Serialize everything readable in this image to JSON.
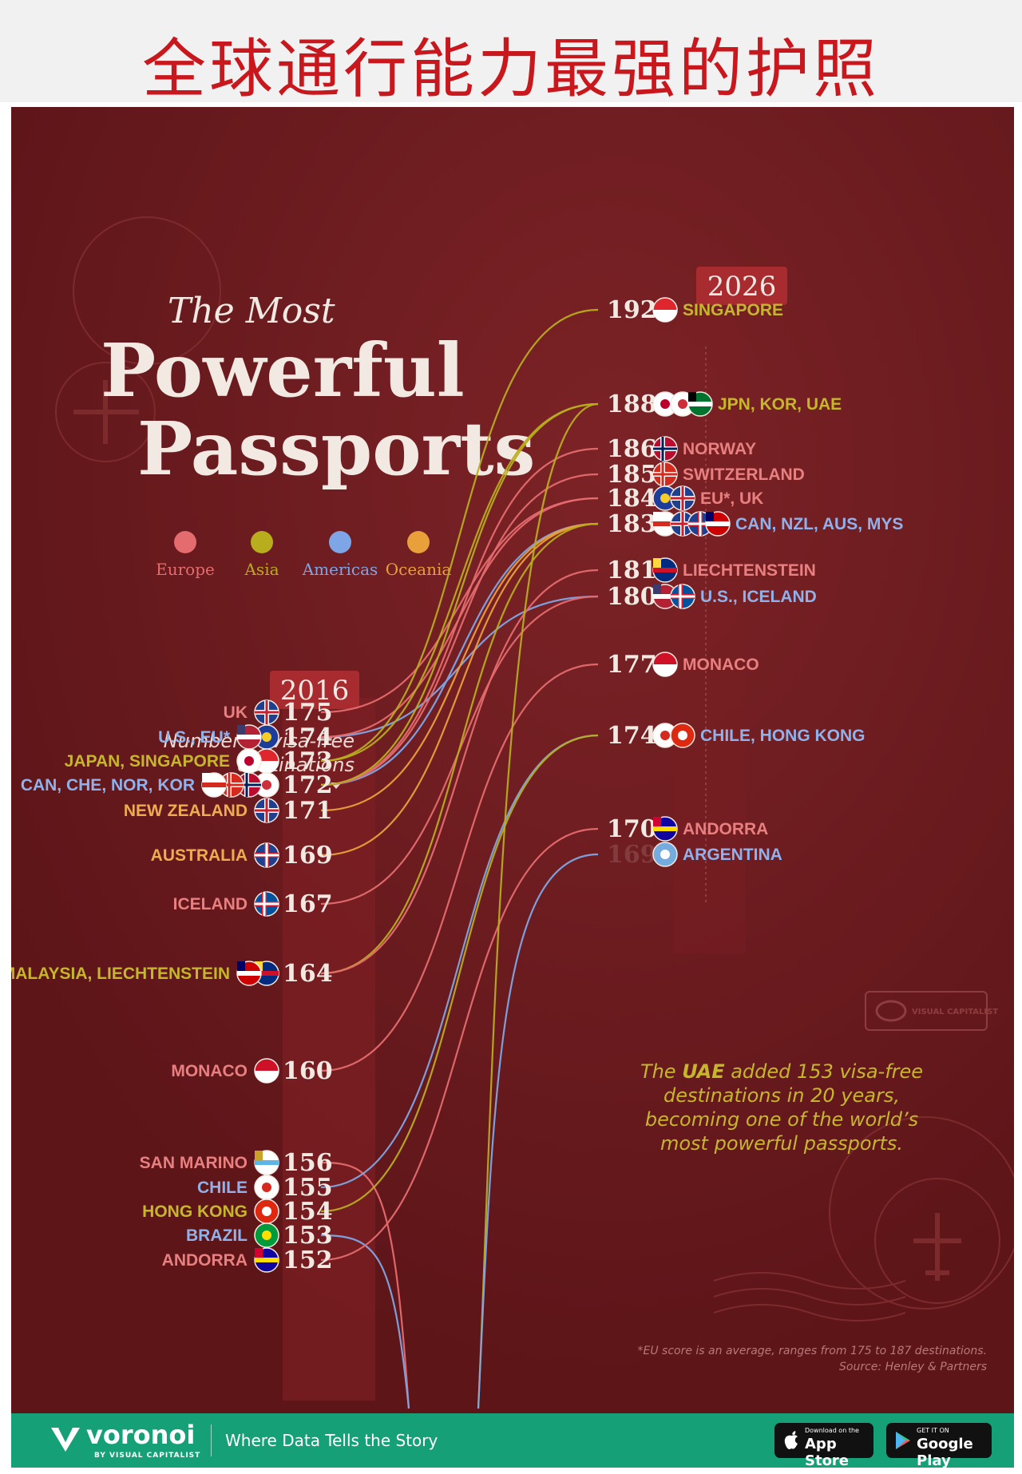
{
  "banner": {
    "title": "全球通行能力最强的护照"
  },
  "poster": {
    "title_line1": "The Most",
    "title_line2": "Powerful",
    "title_line3": "Passports",
    "year_left": "2016",
    "year_right": "2026",
    "axis_note_line1": "Number of visa-free",
    "axis_note_line2": "destinations",
    "legend": [
      {
        "label": "Europe",
        "color": "#e46c6f"
      },
      {
        "label": "Asia",
        "color": "#b8ad1d"
      },
      {
        "label": "Americas",
        "color": "#7ea6e6"
      },
      {
        "label": "Oceania",
        "color": "#e9a03b"
      }
    ],
    "annotation": {
      "line1_pre": "The ",
      "line1_bold": "UAE",
      "line1_post": " added 153 visa-free",
      "line2": "destinations in 20 years,",
      "line3": "becoming one of the world’s",
      "line4": "most powerful passports."
    },
    "footnote1": "*EU score is an average, ranges from 175 to 187 destinations.",
    "footnote2": "Source: Henley & Partners",
    "watermark": "VISUAL CAPITALIST"
  },
  "colors": {
    "background": "#6a1a1d",
    "europe": "#e46c6f",
    "asia": "#b8ad1d",
    "americas": "#7ea6e6",
    "oceania": "#e9a03b",
    "label_europe": "#e87f80",
    "label_asia": "#c6b62c",
    "label_americas": "#8fb2ec",
    "label_oceania": "#eeac52",
    "footer": "#16a077",
    "banner_text": "#c8171d"
  },
  "footer": {
    "logo": "voronoi",
    "logo_sub": "BY VISUAL CAPITALIST",
    "tagline": "Where Data Tells the Story",
    "app_store_small": "Download on the",
    "app_store": "App Store",
    "google_play_small": "GET IT ON",
    "google_play": "Google Play"
  },
  "chart_data": {
    "type": "slope",
    "title": "The Most Powerful Passports",
    "xlabel": "",
    "ylabel": "Number of visa-free destinations",
    "x": [
      "2016",
      "2026"
    ],
    "left_labels": [
      {
        "label": "UK",
        "value": 175,
        "region": "Europe",
        "flags": [
          "gb-flag"
        ]
      },
      {
        "label": "U.S., EU*",
        "value": 174,
        "region": "Americas",
        "flags": [
          "us-flag",
          "eu-flag"
        ]
      },
      {
        "label": "JAPAN, SINGAPORE",
        "value": 173,
        "region": "Asia",
        "flags": [
          "jp-flag",
          "sg-flag"
        ]
      },
      {
        "label": "CAN, CHE, NOR, KOR",
        "value": 172,
        "region": "Americas",
        "flags": [
          "ca-flag",
          "ch-flag",
          "no-flag",
          "kr-flag"
        ]
      },
      {
        "label": "NEW ZEALAND",
        "value": 171,
        "region": "Oceania",
        "flags": [
          "nz-flag"
        ]
      },
      {
        "label": "AUSTRALIA",
        "value": 169,
        "region": "Oceania",
        "flags": [
          "au-flag"
        ]
      },
      {
        "label": "ICELAND",
        "value": 167,
        "region": "Europe",
        "flags": [
          "is-flag"
        ]
      },
      {
        "label": "MALAYSIA, LIECHTENSTEIN",
        "value": 164,
        "region": "Asia",
        "flags": [
          "my-flag",
          "li-flag"
        ]
      },
      {
        "label": "MONACO",
        "value": 160,
        "region": "Europe",
        "flags": [
          "mc-flag"
        ]
      },
      {
        "label": "SAN MARINO",
        "value": 156,
        "region": "Europe",
        "flags": [
          "sm-flag"
        ]
      },
      {
        "label": "CHILE",
        "value": 155,
        "region": "Americas",
        "flags": [
          "cl-flag"
        ]
      },
      {
        "label": "HONG KONG",
        "value": 154,
        "region": "Asia",
        "flags": [
          "hk-flag"
        ]
      },
      {
        "label": "BRAZIL",
        "value": 153,
        "region": "Americas",
        "flags": [
          "br-flag"
        ]
      },
      {
        "label": "ANDORRA",
        "value": 152,
        "region": "Europe",
        "flags": [
          "ad-flag"
        ]
      }
    ],
    "right_labels": [
      {
        "label": "SINGAPORE",
        "value": 192,
        "region": "Asia",
        "flags": [
          "sg-flag"
        ]
      },
      {
        "label": "JPN, KOR, UAE",
        "value": 188,
        "region": "Asia",
        "flags": [
          "jp-flag",
          "kr-flag",
          "ae-flag"
        ]
      },
      {
        "label": "NORWAY",
        "value": 186,
        "region": "Europe",
        "flags": [
          "no-flag"
        ]
      },
      {
        "label": "SWITZERLAND",
        "value": 185,
        "region": "Europe",
        "flags": [
          "ch-flag"
        ]
      },
      {
        "label": "EU*, UK",
        "value": 184,
        "region": "Europe",
        "flags": [
          "eu-flag",
          "gb-flag"
        ]
      },
      {
        "label": "CAN, NZL, AUS, MYS",
        "value": 183,
        "region": "Americas",
        "flags": [
          "ca-flag",
          "nz-flag",
          "au-flag",
          "my-flag"
        ]
      },
      {
        "label": "LIECHTENSTEIN",
        "value": 181,
        "region": "Europe",
        "flags": [
          "li-flag"
        ]
      },
      {
        "label": "U.S., ICELAND",
        "value": 180,
        "region": "Americas",
        "flags": [
          "us-flag",
          "is-flag"
        ]
      },
      {
        "label": "MONACO",
        "value": 177,
        "region": "Europe",
        "flags": [
          "mc-flag"
        ]
      },
      {
        "label": "CHILE, HONG KONG",
        "value": 174,
        "region": "Americas",
        "flags": [
          "cl-flag",
          "hk-flag"
        ]
      },
      {
        "label": "ANDORRA",
        "value": 170,
        "region": "Europe",
        "flags": [
          "ad-flag"
        ]
      },
      {
        "label": "ARGENTINA",
        "value": 169,
        "value_visible": false,
        "region": "Americas",
        "flags": [
          "ar-flag"
        ]
      }
    ],
    "series": [
      {
        "name": "UK",
        "region": "Europe",
        "values": [
          175,
          184
        ]
      },
      {
        "name": "U.S.",
        "region": "Americas",
        "values": [
          174,
          180
        ]
      },
      {
        "name": "EU*",
        "region": "Europe",
        "values": [
          174,
          184
        ]
      },
      {
        "name": "JAPAN",
        "region": "Asia",
        "values": [
          173,
          188
        ]
      },
      {
        "name": "SINGAPORE",
        "region": "Asia",
        "values": [
          173,
          192
        ]
      },
      {
        "name": "CAN",
        "region": "Americas",
        "values": [
          172,
          183
        ]
      },
      {
        "name": "CHE",
        "region": "Europe",
        "values": [
          172,
          185
        ]
      },
      {
        "name": "NOR",
        "region": "Europe",
        "values": [
          172,
          186
        ]
      },
      {
        "name": "KOR",
        "region": "Asia",
        "values": [
          172,
          188
        ]
      },
      {
        "name": "NEW ZEALAND",
        "region": "Oceania",
        "values": [
          171,
          183
        ]
      },
      {
        "name": "AUSTRALIA",
        "region": "Oceania",
        "values": [
          169,
          183
        ]
      },
      {
        "name": "ICELAND",
        "region": "Europe",
        "values": [
          167,
          180
        ]
      },
      {
        "name": "MALAYSIA",
        "region": "Asia",
        "values": [
          164,
          183
        ]
      },
      {
        "name": "LIECHTENSTEIN",
        "region": "Europe",
        "values": [
          164,
          181
        ]
      },
      {
        "name": "MONACO",
        "region": "Europe",
        "values": [
          160,
          177
        ]
      },
      {
        "name": "SAN MARINO",
        "region": "Europe",
        "values": [
          156,
          null
        ]
      },
      {
        "name": "CHILE",
        "region": "Americas",
        "values": [
          155,
          174
        ]
      },
      {
        "name": "HONG KONG",
        "region": "Asia",
        "values": [
          154,
          174
        ]
      },
      {
        "name": "BRAZIL",
        "region": "Americas",
        "values": [
          153,
          null
        ]
      },
      {
        "name": "ANDORRA",
        "region": "Europe",
        "values": [
          152,
          170
        ]
      },
      {
        "name": "UAE",
        "region": "Asia",
        "values": [
          null,
          188
        ]
      },
      {
        "name": "ARGENTINA",
        "region": "Americas",
        "values": [
          null,
          169
        ]
      }
    ]
  }
}
